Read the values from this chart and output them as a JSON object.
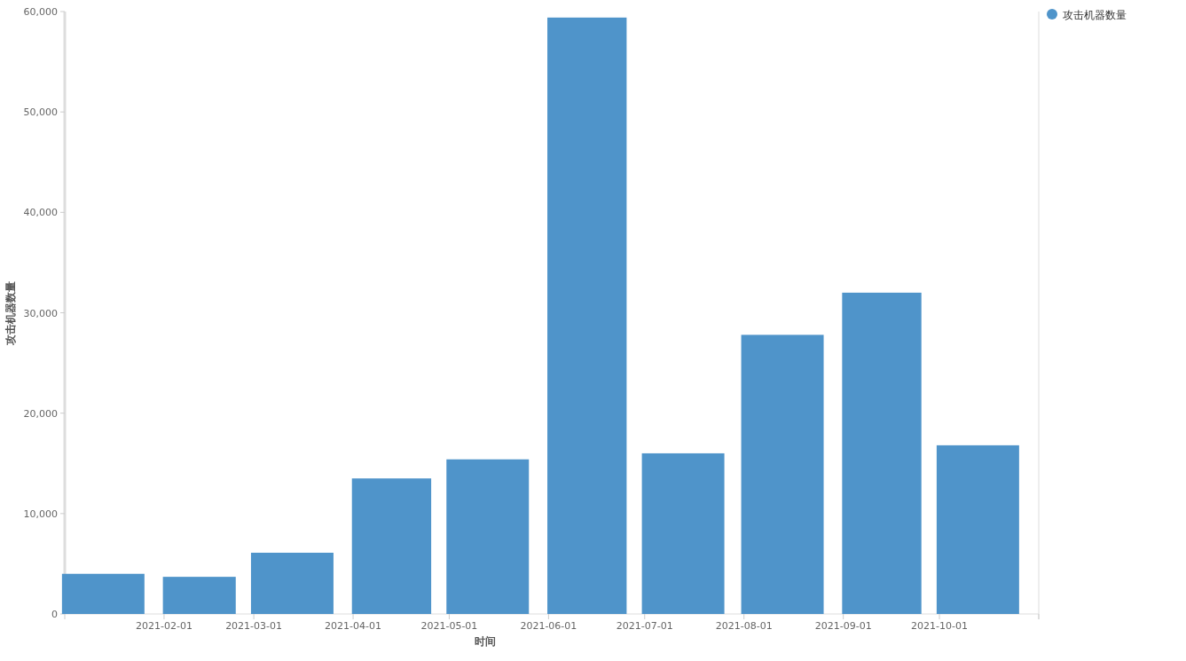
{
  "chart_data": {
    "type": "bar",
    "xlabel": "时间",
    "ylabel": "攻击机器数量",
    "x": [
      "2021-01-13",
      "2021-02-12",
      "2021-03-13",
      "2021-04-13",
      "2021-05-13",
      "2021-06-13",
      "2021-07-13",
      "2021-08-13",
      "2021-09-13",
      "2021-10-13"
    ],
    "series": [
      {
        "name": "攻击机器数量",
        "color": "#4f94ca",
        "values": [
          4000,
          3700,
          6100,
          13500,
          15400,
          59400,
          16000,
          27800,
          32000,
          16800
        ]
      }
    ],
    "xlim": [
      "2021-01-01",
      "2021-11-01"
    ],
    "xticks": [
      {
        "value": "2021-01-01",
        "label": null
      },
      "2021-02-01",
      "2021-03-01",
      "2021-04-01",
      "2021-05-01",
      "2021-06-01",
      "2021-07-01",
      "2021-08-01",
      "2021-09-01",
      "2021-10-01",
      {
        "value": "2021-11-01",
        "label": null
      }
    ],
    "ylim": [
      0,
      60000
    ],
    "yticks": [
      {
        "value": 0,
        "label": "0"
      },
      {
        "value": 10000,
        "label": "10,000"
      },
      {
        "value": 20000,
        "label": "20,000"
      },
      {
        "value": 30000,
        "label": "30,000"
      },
      {
        "value": 40000,
        "label": "40,000"
      },
      {
        "value": 50000,
        "label": "50,000"
      },
      {
        "value": 60000,
        "label": "60,000"
      }
    ],
    "grid": false,
    "legend": "top right"
  }
}
